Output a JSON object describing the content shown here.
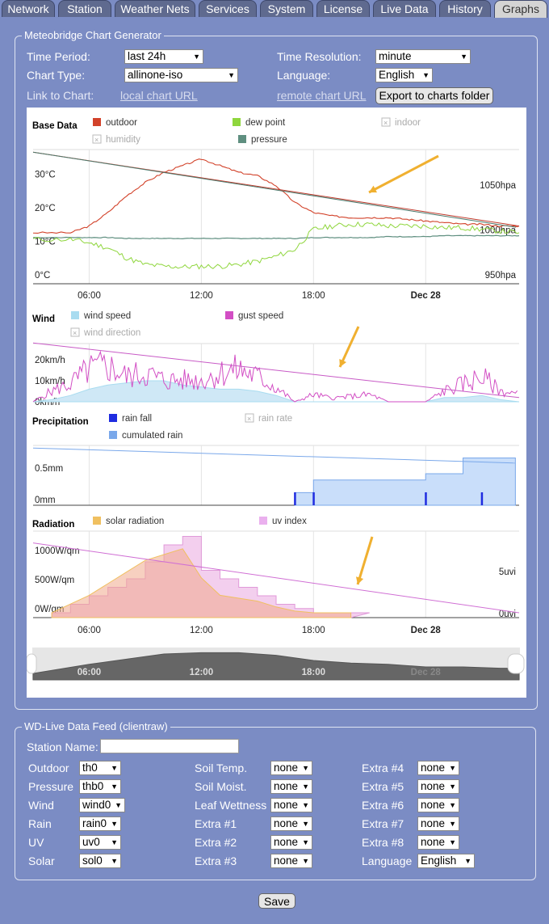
{
  "tabs": [
    {
      "label": "Network",
      "active": false
    },
    {
      "label": "Station",
      "active": false
    },
    {
      "label": "Weather Nets",
      "active": false
    },
    {
      "label": "Services",
      "active": false
    },
    {
      "label": "System",
      "active": false
    },
    {
      "label": "License",
      "active": false
    },
    {
      "label": "Live Data",
      "active": false
    },
    {
      "label": "History",
      "active": false
    },
    {
      "label": "Graphs",
      "active": true
    }
  ],
  "generator": {
    "legend": "Meteobridge Chart Generator",
    "time_period_label": "Time Period:",
    "time_period_value": "last 24h",
    "time_resolution_label": "Time Resolution:",
    "time_resolution_value": "minute",
    "chart_type_label": "Chart Type:",
    "chart_type_value": "allinone-iso",
    "language_label": "Language:",
    "language_value": "English",
    "link_label": "Link to Chart:",
    "local_link": "local chart URL",
    "remote_link": "remote chart URL",
    "export_button": "Export to charts folder"
  },
  "chart_data": [
    {
      "type": "line",
      "title": "Base Data",
      "series": [
        {
          "name": "outdoor",
          "color": "#d2422a",
          "enabled": true
        },
        {
          "name": "dew point",
          "color": "#8fd63d",
          "enabled": true
        },
        {
          "name": "indoor",
          "color": "#bbbbbb",
          "enabled": false
        },
        {
          "name": "humidity",
          "color": "#bbbbbb",
          "enabled": false
        },
        {
          "name": "pressure",
          "color": "#5f8f80",
          "enabled": true
        }
      ],
      "x_ticks": [
        "06:00",
        "12:00",
        "18:00",
        "Dec 28"
      ],
      "y_left_ticks": [
        "0°C",
        "10°C",
        "20°C",
        "30°C"
      ],
      "y_right_ticks": [
        "950hpa",
        "1000hpa",
        "1050hpa"
      ],
      "x": [
        3,
        5,
        6,
        7,
        8,
        9,
        10,
        11,
        12,
        13,
        14,
        15,
        16,
        17,
        18,
        19,
        20,
        21,
        22,
        23,
        24,
        25,
        26,
        27,
        28,
        29
      ],
      "outdoor": [
        14,
        14,
        16,
        20,
        25,
        29,
        32,
        34,
        36,
        34,
        32,
        31,
        28,
        23,
        20,
        19,
        18.5,
        18.5,
        18.5,
        18,
        17.5,
        17,
        16.5,
        16.5,
        16,
        16
      ],
      "dew_point": [
        12,
        12,
        11,
        9.5,
        6.5,
        4.5,
        4,
        3.8,
        4,
        4,
        4.5,
        5.5,
        7,
        9,
        15,
        16,
        16.5,
        16.5,
        16,
        16,
        16,
        15.5,
        15.5,
        15,
        14.5,
        14
      ],
      "pressure": [
        997,
        997,
        997,
        997,
        996,
        996,
        996,
        996,
        996,
        996,
        996,
        996,
        996,
        996,
        997,
        997,
        997,
        997,
        998,
        998,
        998,
        999,
        999,
        999,
        999,
        999
      ],
      "trend_lines": [
        {
          "series": "outdoor",
          "from": [
            3,
            38
          ],
          "to": [
            29,
            16
          ]
        },
        {
          "series": "pressure",
          "from": [
            3,
            38
          ],
          "to": [
            29,
            16
          ]
        }
      ]
    },
    {
      "type": "area",
      "title": "Wind",
      "series": [
        {
          "name": "wind speed",
          "color": "#a9dcf0",
          "enabled": true
        },
        {
          "name": "gust speed",
          "color": "#d24ec4",
          "enabled": true
        },
        {
          "name": "wind direction",
          "color": "#bbbbbb",
          "enabled": false
        }
      ],
      "y_ticks": [
        "0km/h",
        "10km/h",
        "20km/h"
      ],
      "x": [
        3,
        4,
        5,
        6,
        7,
        8,
        9,
        10,
        11,
        12,
        13,
        14,
        15,
        16,
        17,
        18,
        19,
        20,
        21,
        22,
        23,
        24,
        25,
        26,
        27,
        28,
        29
      ],
      "wind_speed": [
        0,
        1,
        3,
        6,
        8,
        9,
        10,
        10,
        8,
        7,
        6,
        6,
        5,
        3,
        0,
        0,
        0,
        0,
        0,
        0,
        0,
        0,
        2,
        2,
        3,
        1,
        0
      ],
      "gust_speed": [
        0,
        6,
        10,
        18,
        20,
        14,
        16,
        12,
        12,
        12,
        16,
        18,
        14,
        8,
        0,
        4,
        2,
        3,
        4,
        0,
        0,
        0,
        6,
        10,
        14,
        6,
        4
      ],
      "trend_line": {
        "from": [
          3,
          28
        ],
        "to": [
          29,
          2
        ]
      }
    },
    {
      "type": "area",
      "title": "Precipitation",
      "series": [
        {
          "name": "rain fall",
          "color": "#1f2ce0",
          "enabled": true
        },
        {
          "name": "rain rate",
          "color": "#bbbbbb",
          "enabled": false
        },
        {
          "name": "cumulated rain",
          "color": "#7aa8ea",
          "enabled": true
        }
      ],
      "y_ticks": [
        "0mm",
        "0.5mm"
      ],
      "cumulated": [
        {
          "x": 17,
          "y": 0.2
        },
        {
          "x": 18,
          "y": 0.4
        },
        {
          "x": 24,
          "y": 0.5
        },
        {
          "x": 26,
          "y": 0.75
        },
        {
          "x": 27,
          "y": 0.75
        }
      ],
      "rain_fall_events": [
        {
          "x": 17,
          "y": 0.2
        },
        {
          "x": 18,
          "y": 0.2
        },
        {
          "x": 24,
          "y": 0.2
        },
        {
          "x": 27,
          "y": 0.2
        }
      ],
      "trend_line": {
        "from": [
          3,
          1.1
        ],
        "to": [
          29,
          0.9
        ]
      }
    },
    {
      "type": "area",
      "title": "Radiation",
      "series": [
        {
          "name": "solar radiation",
          "color": "#f0c060",
          "enabled": true
        },
        {
          "name": "uv index",
          "color": "#eab0ee",
          "enabled": true
        }
      ],
      "x_ticks": [
        "06:00",
        "12:00",
        "18:00",
        "Dec 28"
      ],
      "y_left_ticks": [
        "0W/qm",
        "500W/qm",
        "1000W/qm"
      ],
      "y_right_ticks": [
        "0uvi",
        "5uvi"
      ],
      "x": [
        4,
        5,
        6,
        7,
        8,
        9,
        10,
        11,
        12,
        13,
        14,
        15,
        16,
        17,
        18,
        19,
        20
      ],
      "solar_radiation": [
        0,
        150,
        300,
        500,
        700,
        900,
        1000,
        1100,
        600,
        300,
        250,
        200,
        100,
        30,
        0,
        0,
        0
      ],
      "uv_index": [
        0,
        1,
        2,
        3,
        4,
        6,
        8,
        9,
        5,
        4,
        3,
        2,
        1,
        0.5,
        0,
        0,
        0
      ],
      "trend_line": {
        "from": [
          3,
          1200
        ],
        "to": [
          29,
          0
        ]
      }
    }
  ],
  "navigator_ticks": [
    "06:00",
    "12:00",
    "18:00",
    "Dec 28"
  ],
  "wd": {
    "legend": "WD-Live Data Feed (clientraw)",
    "station_name_label": "Station Name:",
    "station_name_value": "",
    "col1": [
      {
        "label": "Outdoor",
        "value": "th0"
      },
      {
        "label": "Pressure",
        "value": "thb0"
      },
      {
        "label": "Wind",
        "value": "wind0"
      },
      {
        "label": "Rain",
        "value": "rain0"
      },
      {
        "label": "UV",
        "value": "uv0"
      },
      {
        "label": "Solar",
        "value": "sol0"
      }
    ],
    "col2": [
      {
        "label": "Soil Temp.",
        "value": "none"
      },
      {
        "label": "Soil Moist.",
        "value": "none"
      },
      {
        "label": "Leaf Wettness",
        "value": "none"
      },
      {
        "label": "Extra #1",
        "value": "none"
      },
      {
        "label": "Extra #2",
        "value": "none"
      },
      {
        "label": "Extra #3",
        "value": "none"
      }
    ],
    "col3": [
      {
        "label": "Extra #4",
        "value": "none"
      },
      {
        "label": "Extra #5",
        "value": "none"
      },
      {
        "label": "Extra #6",
        "value": "none"
      },
      {
        "label": "Extra #7",
        "value": "none"
      },
      {
        "label": "Extra #8",
        "value": "none"
      },
      {
        "label": "Language",
        "value": "English"
      }
    ]
  },
  "save_button": "Save",
  "colors": {
    "background": "#7b8cc4",
    "tab": "#5f6a8f",
    "tab_active": "#d4d4d4",
    "arrow": "#f0b030"
  }
}
